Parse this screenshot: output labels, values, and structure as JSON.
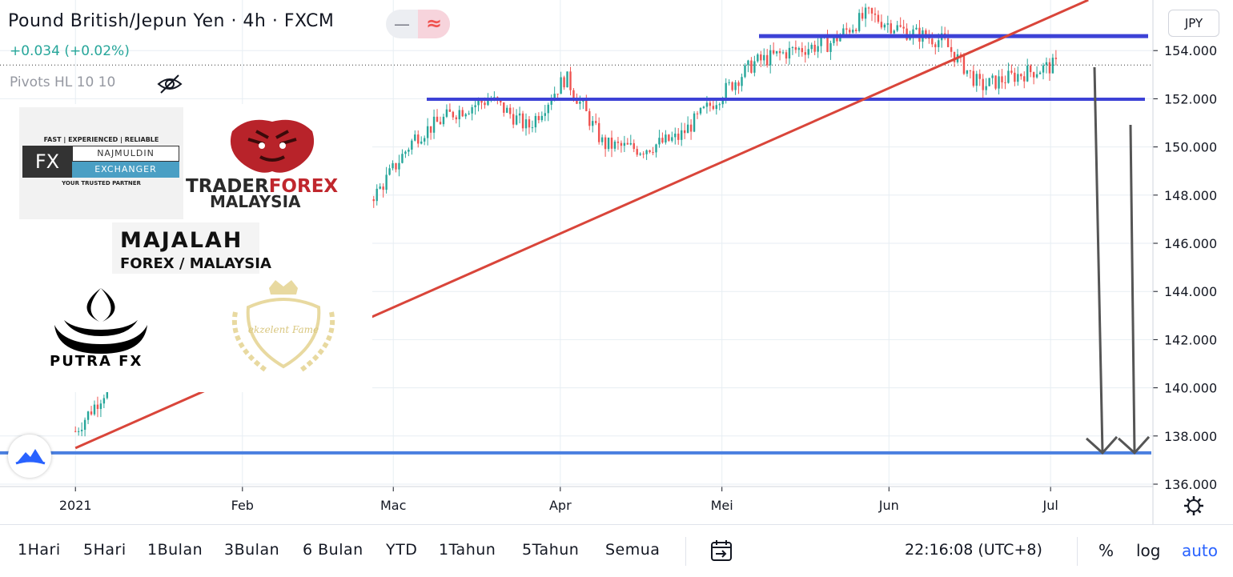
{
  "header": {
    "title": "Pound British/Jepun Yen · 4h · FXCM",
    "change": "+0.034 (+0.02%)",
    "indicator": "Pivots HL 10 10",
    "currency": "JPY"
  },
  "colors": {
    "up": "#26a69a",
    "down": "#ef5350",
    "horizontal_line": "#3d42d6",
    "support_line": "#4a7fe0",
    "trendline": "#d9453a",
    "arrow": "#555555",
    "accent": "#2962ff"
  },
  "logos": {
    "fx_tagline": "FAST | EXPERIENCED | RELIABLE",
    "fx_mark": "FX",
    "fx_name": "NAJMULDIN",
    "fx_sub": "EXCHANGER",
    "fx_footer": "YOUR TRUSTED PARTNER",
    "trader_a": "TRADER",
    "trader_b": "FOREX",
    "trader_c": "MALAYSIA",
    "majalah_a": "MAJALAH",
    "majalah_b": "FOREX / MALAYSIA",
    "putra": "PUTRA FX",
    "crest": "ekzelent Fame"
  },
  "bottom": {
    "ranges": [
      "1Hari",
      "5Hari",
      "1Bulan",
      "3Bulan",
      "6 Bulan",
      "YTD",
      "1Tahun",
      "5Tahun",
      "Semua"
    ],
    "clock": "22:16:08 (UTC+8)",
    "percent": "%",
    "log": "log",
    "auto": "auto"
  },
  "icons": [
    "eye-slash-icon",
    "calendar-goto-icon",
    "gear-icon",
    "tradingview-logo-icon"
  ],
  "chart_data": {
    "type": "candlestick",
    "x_ticks": [
      "2021",
      "Feb",
      "Mac",
      "Apr",
      "Mei",
      "Jun",
      "Jul"
    ],
    "y_ticks": [
      "154.000",
      "152.000",
      "150.000",
      "148.000",
      "146.000",
      "144.000",
      "142.000",
      "140.000",
      "138.000",
      "136.000"
    ],
    "ylim": [
      135.9,
      156.1
    ],
    "x": [
      "2021-01-01",
      "2021-01-08",
      "2021-01-15",
      "2021-01-22",
      "2021-01-29",
      "2021-02-05",
      "2021-02-12",
      "2021-02-19",
      "2021-02-26",
      "2021-03-05",
      "2021-03-12",
      "2021-03-19",
      "2021-03-26",
      "2021-04-02",
      "2021-04-09",
      "2021-04-16",
      "2021-04-23",
      "2021-04-30",
      "2021-05-07",
      "2021-05-14",
      "2021-05-21",
      "2021-05-28",
      "2021-06-04",
      "2021-06-11",
      "2021-06-18",
      "2021-06-25",
      "2021-07-02"
    ],
    "values": [
      138.2,
      140.3,
      141.5,
      142.8,
      143.8,
      145.2,
      146.3,
      147.2,
      148.1,
      150.4,
      151.4,
      152.0,
      150.8,
      152.9,
      150.1,
      149.9,
      150.4,
      152.0,
      153.5,
      154.0,
      154.3,
      155.5,
      154.8,
      154.4,
      152.5,
      153.0,
      153.4
    ],
    "last_price": 153.4,
    "grid": true,
    "annotations": {
      "horizontal_lines": [
        154.6,
        151.98,
        137.3
      ],
      "trendline": [
        [
          "2021-01-01",
          137.5
        ],
        [
          "2021-07-08",
          156.1
        ]
      ],
      "arrows_down_to": 137.3
    }
  }
}
